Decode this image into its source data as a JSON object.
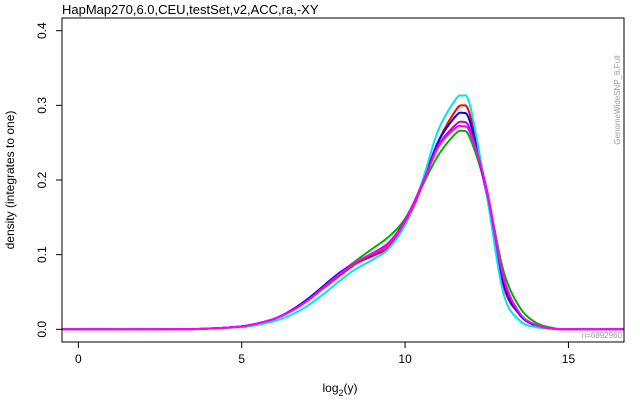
{
  "chart_data": {
    "type": "line",
    "title": "HapMap270,6.0,CEU,testSet,v2,ACC,ra,-XY",
    "side_label": "GenomeWideSNP_6,Full",
    "count_label": "n=6892960",
    "xlabel": {
      "prefix": "log",
      "sub": "2",
      "suffix": "(y)"
    },
    "ylabel": "density (integrates to one)",
    "xlim": [
      -0.5,
      16.7
    ],
    "ylim": [
      -0.017,
      0.417
    ],
    "x_ticks": [
      0,
      5,
      10,
      15
    ],
    "y_ticks": [
      0.0,
      0.1,
      0.2,
      0.3,
      0.4
    ],
    "x_tick_labels": [
      "0",
      "5",
      "10",
      "15"
    ],
    "y_tick_labels": [
      "0.0",
      "0.1",
      "0.2",
      "0.3",
      "0.4"
    ],
    "grid": false,
    "x": [
      -0.5,
      3,
      4,
      5,
      5.5,
      6,
      6.5,
      7,
      7.5,
      8,
      8.5,
      9,
      9.5,
      10,
      10.5,
      11,
      11.5,
      11.75,
      12,
      12.5,
      13,
      13.5,
      14,
      14.5,
      15,
      16.7
    ],
    "series": [
      {
        "color": "#ff0000",
        "values": [
          0,
          0,
          0.001,
          0.004,
          0.008,
          0.014,
          0.024,
          0.038,
          0.055,
          0.072,
          0.088,
          0.098,
          0.11,
          0.14,
          0.19,
          0.25,
          0.29,
          0.3,
          0.285,
          0.18,
          0.06,
          0.02,
          0.005,
          0.001,
          0,
          0
        ]
      },
      {
        "color": "#00b000",
        "values": [
          0,
          0,
          0.001,
          0.004,
          0.008,
          0.014,
          0.024,
          0.038,
          0.056,
          0.075,
          0.092,
          0.108,
          0.124,
          0.148,
          0.19,
          0.232,
          0.26,
          0.266,
          0.255,
          0.185,
          0.08,
          0.03,
          0.009,
          0.002,
          0,
          0
        ]
      },
      {
        "color": "#0000ff",
        "values": [
          0,
          0,
          0.001,
          0.004,
          0.008,
          0.014,
          0.025,
          0.04,
          0.058,
          0.076,
          0.09,
          0.1,
          0.114,
          0.144,
          0.193,
          0.25,
          0.283,
          0.29,
          0.276,
          0.18,
          0.064,
          0.02,
          0.005,
          0.001,
          0,
          0
        ]
      },
      {
        "color": "#00e5e5",
        "values": [
          0,
          0,
          0.001,
          0.003,
          0.006,
          0.011,
          0.019,
          0.031,
          0.047,
          0.065,
          0.081,
          0.093,
          0.108,
          0.14,
          0.195,
          0.265,
          0.305,
          0.313,
          0.298,
          0.18,
          0.05,
          0.012,
          0.003,
          0.001,
          0,
          0
        ]
      },
      {
        "color": "#cc00cc",
        "values": [
          0,
          0,
          0.001,
          0.004,
          0.008,
          0.014,
          0.024,
          0.038,
          0.056,
          0.074,
          0.09,
          0.102,
          0.116,
          0.146,
          0.192,
          0.245,
          0.272,
          0.278,
          0.266,
          0.185,
          0.07,
          0.022,
          0.006,
          0.001,
          0,
          0
        ]
      },
      {
        "color": "#ff00ff",
        "values": [
          0,
          0,
          0.001,
          0.004,
          0.008,
          0.014,
          0.024,
          0.038,
          0.056,
          0.074,
          0.09,
          0.101,
          0.114,
          0.144,
          0.19,
          0.243,
          0.268,
          0.272,
          0.262,
          0.188,
          0.072,
          0.022,
          0.006,
          0.001,
          0,
          0
        ]
      }
    ]
  }
}
